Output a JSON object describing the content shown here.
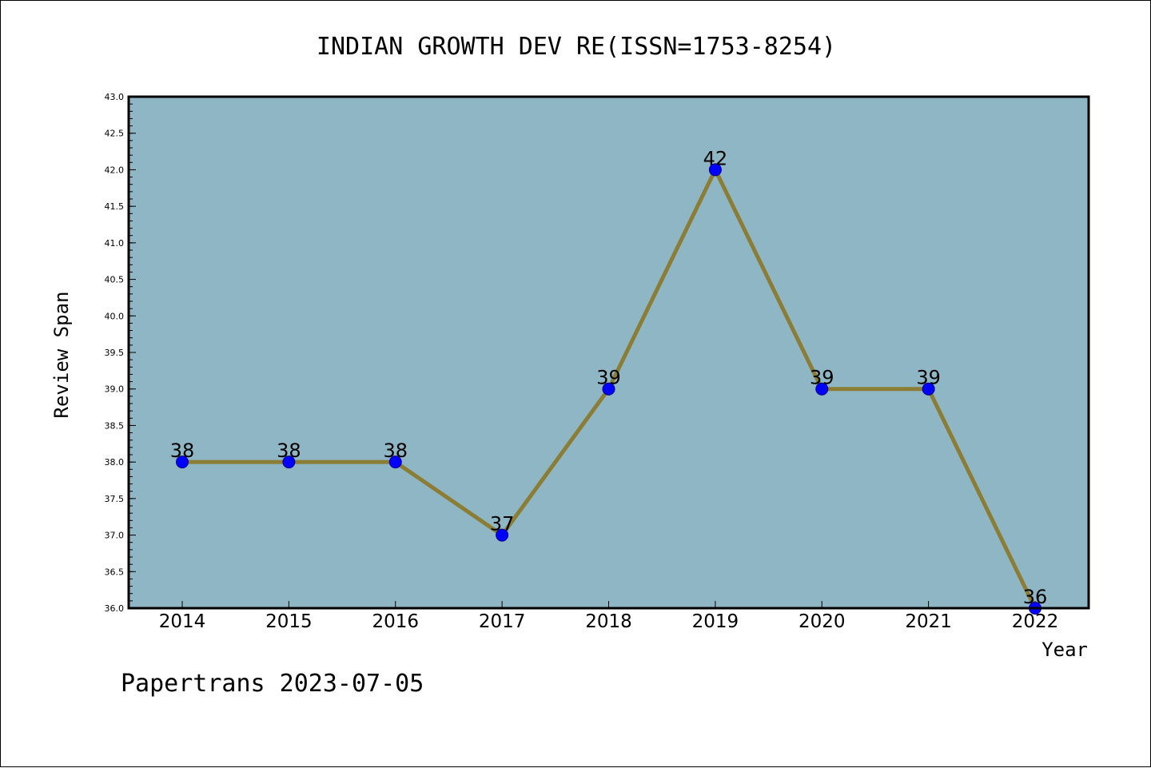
{
  "chart_data": {
    "type": "line",
    "title": "INDIAN GROWTH DEV RE(ISSN=1753-8254)",
    "xlabel": "Year",
    "ylabel": "Review Span",
    "categories": [
      "2014",
      "2015",
      "2016",
      "2017",
      "2018",
      "2019",
      "2020",
      "2021",
      "2022"
    ],
    "series": [
      {
        "values": [
          38,
          38,
          38,
          37,
          39,
          42,
          39,
          39,
          36
        ]
      }
    ],
    "data_labels": [
      "38",
      "38",
      "38",
      "37",
      "39",
      "42",
      "39",
      "39",
      "36"
    ],
    "ylim": [
      36.0,
      43.0
    ],
    "yticks": [
      "36.0",
      "36.5",
      "37.0",
      "37.5",
      "38.0",
      "38.5",
      "39.0",
      "39.5",
      "40.0",
      "40.5",
      "41.0",
      "41.5",
      "42.0",
      "42.5",
      "43.0"
    ],
    "grid": false,
    "legend": "none",
    "colors": {
      "plot_background": "#8fb6c4",
      "line": "#8b7d35",
      "marker": "#0000ff"
    }
  },
  "footer": {
    "watermark": "Papertrans 2023-07-05"
  }
}
